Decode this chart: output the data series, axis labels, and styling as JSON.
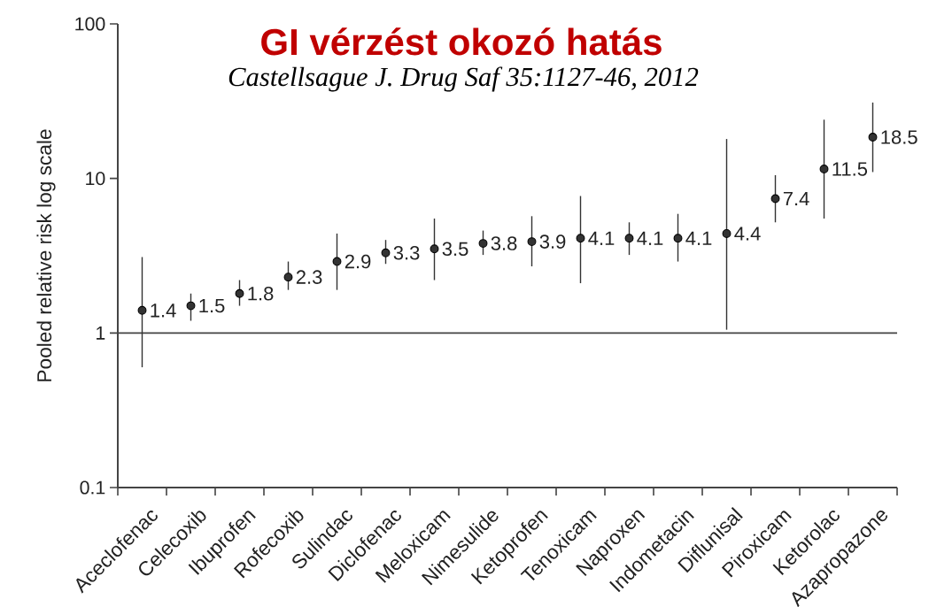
{
  "chart_data": {
    "type": "scatter",
    "title": "GI vérzést okozó hatás",
    "subtitle": "Castellsague J. Drug Saf 35:1127-46, 2012",
    "ylabel": "Pooled relative risk log scale",
    "categories": [
      "Aceclofenac",
      "Celecoxib",
      "Ibuprofen",
      "Rofecoxib",
      "Sulindac",
      "Diclofenac",
      "Meloxicam",
      "Nimesulide",
      "Ketoprofen",
      "Tenoxicam",
      "Naproxen",
      "Indometacin",
      "Diflunisal",
      "Piroxicam",
      "Ketorolac",
      "Azapropazone"
    ],
    "values": [
      1.4,
      1.5,
      1.8,
      2.3,
      2.9,
      3.3,
      3.5,
      3.8,
      3.9,
      4.1,
      4.1,
      4.1,
      4.4,
      7.4,
      11.5,
      18.5
    ],
    "errors": [
      [
        0.6,
        3.1
      ],
      [
        1.2,
        1.8
      ],
      [
        1.5,
        2.2
      ],
      [
        1.9,
        2.9
      ],
      [
        1.9,
        4.4
      ],
      [
        2.8,
        4.0
      ],
      [
        2.2,
        5.5
      ],
      [
        3.2,
        4.6
      ],
      [
        2.7,
        5.7
      ],
      [
        2.1,
        7.7
      ],
      [
        3.2,
        5.2
      ],
      [
        2.9,
        5.9
      ],
      [
        1.05,
        18
      ],
      [
        5.2,
        10.5
      ],
      [
        5.5,
        24
      ],
      [
        11,
        31
      ]
    ],
    "color": "#333333",
    "marker": "circle",
    "log": true,
    "ylim": [
      0.1,
      100
    ],
    "yticks": [
      0.1,
      1,
      10,
      100
    ],
    "ref_lines": [
      {
        "axis": "y",
        "value": 1,
        "color": "#444444"
      }
    ],
    "data_labels": true
  }
}
